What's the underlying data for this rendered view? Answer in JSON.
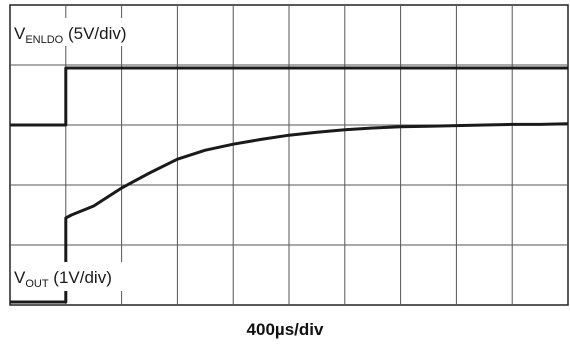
{
  "chart_data": {
    "type": "line",
    "title": "",
    "grid": true,
    "divisions": {
      "x": 10,
      "y": 5
    },
    "xlabel": "400µs/div",
    "x_unit": "div",
    "y_unit": "div",
    "xlim": [
      0,
      10
    ],
    "ylim": [
      0,
      5
    ],
    "series": [
      {
        "name": "V_ENLDO",
        "label_main": "V",
        "label_sub": "ENLDO",
        "label_scale": " (5V/div)",
        "color": "#1a1a1a",
        "x": [
          0,
          1.0,
          1.0,
          10
        ],
        "y": [
          3.0,
          3.0,
          3.95,
          3.95
        ]
      },
      {
        "name": "V_OUT",
        "label_main": "V",
        "label_sub": "OUT",
        "label_scale": " (1V/div)",
        "color": "#1a1a1a",
        "x": [
          0,
          1.0,
          1.0,
          1.1,
          1.5,
          2.0,
          2.5,
          3.0,
          3.5,
          4.0,
          4.5,
          5.0,
          5.5,
          6.0,
          6.5,
          7.0,
          7.5,
          8.0,
          8.5,
          9.0,
          9.5,
          10
        ],
        "y": [
          0.05,
          0.05,
          1.45,
          1.5,
          1.65,
          1.95,
          2.2,
          2.43,
          2.58,
          2.68,
          2.76,
          2.83,
          2.88,
          2.92,
          2.95,
          2.97,
          2.98,
          2.99,
          3.0,
          3.01,
          3.01,
          3.02
        ]
      }
    ]
  }
}
